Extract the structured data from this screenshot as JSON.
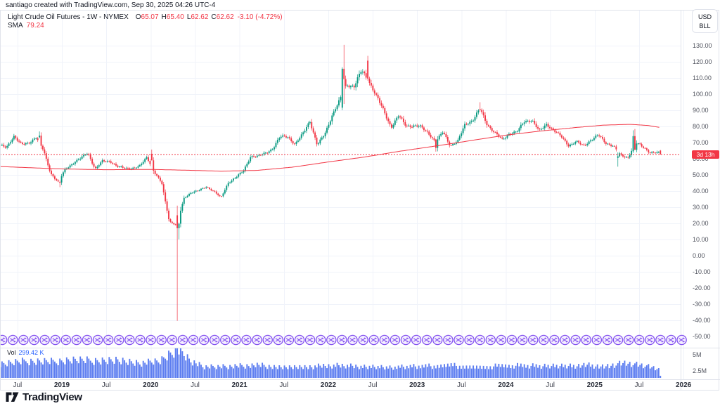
{
  "header": {
    "attribution": "santiago created with TradingView.com, Sep 30, 2025 04:26 UTC-4"
  },
  "legend": {
    "symbol": "Light Crude Oil Futures",
    "interval": "1W",
    "exchange": "NYMEX",
    "sep": " - ",
    "ohlc": [
      {
        "k": "O",
        "v": "65.07"
      },
      {
        "k": "H",
        "v": "65.40"
      },
      {
        "k": "L",
        "v": "62.62"
      },
      {
        "k": "C",
        "v": "62.62"
      }
    ],
    "change": "-3.10 (-4.72%)",
    "sma_label": "SMA",
    "sma_value": "79.24"
  },
  "right_axis": {
    "currency": "USD",
    "unit": "BLL",
    "countdown": "3d 13h",
    "price_labels": [
      "130.00",
      "120.00",
      "110.00",
      "100.00",
      "90.00",
      "80.00",
      "70.00",
      "60.00",
      "50.00",
      "40.00",
      "30.00",
      "20.00",
      "10.00",
      "0.00",
      "-10.00",
      "-20.00",
      "-30.00",
      "-40.00",
      "-50.00"
    ],
    "volume_labels": [
      "5M",
      "2.5M"
    ]
  },
  "time_axis": [
    {
      "label": "Jul",
      "t": 2018.5
    },
    {
      "label": "2019",
      "t": 2019.0
    },
    {
      "label": "Jul",
      "t": 2019.5
    },
    {
      "label": "2020",
      "t": 2020.0
    },
    {
      "label": "Jul",
      "t": 2020.5
    },
    {
      "label": "2021",
      "t": 2021.0
    },
    {
      "label": "Jul",
      "t": 2021.5
    },
    {
      "label": "2022",
      "t": 2022.0
    },
    {
      "label": "Jul",
      "t": 2022.5
    },
    {
      "label": "2023",
      "t": 2023.0
    },
    {
      "label": "Jul",
      "t": 2023.5
    },
    {
      "label": "2024",
      "t": 2024.0
    },
    {
      "label": "Jul",
      "t": 2024.5
    },
    {
      "label": "2025",
      "t": 2025.0
    },
    {
      "label": "Jul",
      "t": 2025.5
    },
    {
      "label": "2026",
      "t": 2026.0
    }
  ],
  "volume_legend": {
    "label": "Vol",
    "value": "299.42 K"
  },
  "logo": {
    "text": "TradingView"
  },
  "markers": {
    "name": "shuffle-arrows-circle",
    "count": 65
  },
  "colors": {
    "up": "#089981",
    "down": "#f23645",
    "sma": "#f23645",
    "price_line": "#f23645",
    "volume_bar": "#5b7cf0",
    "volume_value": "#2962ff",
    "marker_stroke": "#8250f0",
    "marker_fill": "#f4eefe",
    "grid": "#f0f3fa",
    "frame": "#e0e3eb",
    "badge_bg": "#f23645",
    "badge_text": "#ffffff"
  },
  "chart_data": {
    "type": "candlestick",
    "title": "Light Crude Oil Futures - 1W - NYMEX",
    "ylabel": "USD/BLL",
    "ylim": [
      -50,
      130
    ],
    "price_step": 10,
    "last_bar": {
      "o": 65.07,
      "h": 65.4,
      "l": 62.62,
      "c": 62.62,
      "change": -3.1,
      "change_pct": -4.72
    },
    "sma_last": 79.24,
    "current_price": 62.62,
    "grid": "on",
    "monthly_closes": [
      [
        2018.292,
        68.3
      ],
      [
        2018.375,
        67.0
      ],
      [
        2018.458,
        74.1
      ],
      [
        2018.542,
        68.7
      ],
      [
        2018.625,
        69.8
      ],
      [
        2018.708,
        73.3
      ],
      [
        2018.792,
        65.3
      ],
      [
        2018.875,
        50.9
      ],
      [
        2018.958,
        45.4
      ],
      [
        2019.042,
        53.8
      ],
      [
        2019.125,
        57.2
      ],
      [
        2019.208,
        60.1
      ],
      [
        2019.292,
        63.9
      ],
      [
        2019.375,
        53.5
      ],
      [
        2019.458,
        58.5
      ],
      [
        2019.542,
        58.6
      ],
      [
        2019.625,
        55.1
      ],
      [
        2019.708,
        54.1
      ],
      [
        2019.792,
        54.2
      ],
      [
        2019.875,
        55.2
      ],
      [
        2019.958,
        61.1
      ],
      [
        2020.042,
        51.6
      ],
      [
        2020.125,
        44.8
      ],
      [
        2020.208,
        21.5
      ],
      [
        2020.292,
        18.5
      ],
      [
        2020.375,
        35.5
      ],
      [
        2020.458,
        39.3
      ],
      [
        2020.542,
        40.3
      ],
      [
        2020.625,
        42.6
      ],
      [
        2020.708,
        40.1
      ],
      [
        2020.792,
        35.8
      ],
      [
        2020.875,
        45.3
      ],
      [
        2020.958,
        48.5
      ],
      [
        2021.042,
        52.2
      ],
      [
        2021.125,
        61.5
      ],
      [
        2021.208,
        61.4
      ],
      [
        2021.292,
        63.6
      ],
      [
        2021.375,
        66.3
      ],
      [
        2021.458,
        73.5
      ],
      [
        2021.542,
        73.9
      ],
      [
        2021.625,
        68.7
      ],
      [
        2021.708,
        75.0
      ],
      [
        2021.792,
        83.6
      ],
      [
        2021.875,
        68.2
      ],
      [
        2021.958,
        75.2
      ],
      [
        2022.042,
        86.8
      ],
      [
        2022.125,
        95.7
      ],
      [
        2022.208,
        106.0
      ],
      [
        2022.292,
        104.7
      ],
      [
        2022.375,
        114.7
      ],
      [
        2022.458,
        108.0
      ],
      [
        2022.542,
        98.6
      ],
      [
        2022.625,
        89.6
      ],
      [
        2022.708,
        79.5
      ],
      [
        2022.792,
        86.5
      ],
      [
        2022.875,
        80.6
      ],
      [
        2022.958,
        80.3
      ],
      [
        2023.042,
        79.7
      ],
      [
        2023.125,
        76.3
      ],
      [
        2023.208,
        70.0
      ],
      [
        2023.292,
        76.8
      ],
      [
        2023.375,
        68.1
      ],
      [
        2023.458,
        70.6
      ],
      [
        2023.542,
        81.8
      ],
      [
        2023.625,
        83.6
      ],
      [
        2023.708,
        90.8
      ],
      [
        2023.792,
        81.0
      ],
      [
        2023.875,
        76.0
      ],
      [
        2023.958,
        71.7
      ],
      [
        2024.042,
        75.8
      ],
      [
        2024.125,
        76.5
      ],
      [
        2024.208,
        83.2
      ],
      [
        2024.292,
        84.0
      ],
      [
        2024.375,
        77.0
      ],
      [
        2024.458,
        81.5
      ],
      [
        2024.542,
        77.2
      ],
      [
        2024.625,
        73.6
      ],
      [
        2024.708,
        68.2
      ],
      [
        2024.792,
        70.5
      ],
      [
        2024.875,
        68.0
      ],
      [
        2024.958,
        71.7
      ],
      [
        2025.042,
        74.5
      ],
      [
        2025.125,
        69.8
      ],
      [
        2025.208,
        68.0
      ],
      [
        2025.292,
        62.0
      ],
      [
        2025.375,
        60.8
      ],
      [
        2025.458,
        70.0
      ],
      [
        2025.542,
        67.3
      ],
      [
        2025.625,
        64.0
      ],
      [
        2025.708,
        63.5
      ],
      [
        2025.792,
        62.6
      ]
    ],
    "special_weeks": [
      {
        "t": 2018.755,
        "o": 73.3,
        "h": 76.9,
        "l": 72.6,
        "c": 74.3
      },
      {
        "t": 2018.978,
        "o": 45.6,
        "h": 46.5,
        "l": 42.4,
        "c": 45.3
      },
      {
        "t": 2020.02,
        "o": 63.1,
        "h": 65.7,
        "l": 58.9,
        "c": 59.0
      },
      {
        "t": 2020.299,
        "o": 25.0,
        "h": 31.0,
        "l": -40.3,
        "c": 17.0
      },
      {
        "t": 2020.318,
        "o": 17.0,
        "h": 20.5,
        "l": 10.1,
        "c": 19.8
      },
      {
        "t": 2022.163,
        "o": 91.6,
        "h": 116.6,
        "l": 90.1,
        "c": 115.7
      },
      {
        "t": 2022.182,
        "o": 115.7,
        "h": 130.5,
        "l": 93.9,
        "c": 109.3
      },
      {
        "t": 2022.45,
        "o": 120.7,
        "h": 123.7,
        "l": 108.3,
        "c": 109.6
      },
      {
        "t": 2023.21,
        "o": 71.9,
        "h": 72.3,
        "l": 64.4,
        "c": 66.7
      },
      {
        "t": 2023.716,
        "o": 90.8,
        "h": 95.0,
        "l": 89.2,
        "c": 90.3
      },
      {
        "t": 2025.266,
        "o": 60.5,
        "h": 63.9,
        "l": 55.1,
        "c": 61.5
      },
      {
        "t": 2025.44,
        "o": 64.6,
        "h": 77.6,
        "l": 63.6,
        "c": 74.0
      },
      {
        "t": 2025.46,
        "o": 74.0,
        "h": 78.4,
        "l": 65.5,
        "c": 65.5
      },
      {
        "t": 2025.74,
        "o": 65.07,
        "h": 65.4,
        "l": 62.62,
        "c": 62.62
      }
    ],
    "sma_points": [
      [
        2018.3,
        55.2
      ],
      [
        2018.7,
        54.3
      ],
      [
        2019.0,
        53.7
      ],
      [
        2019.5,
        53.2
      ],
      [
        2020.0,
        53.4
      ],
      [
        2020.4,
        52.9
      ],
      [
        2020.8,
        52.3
      ],
      [
        2021.2,
        52.8
      ],
      [
        2021.6,
        54.8
      ],
      [
        2022.0,
        58.0
      ],
      [
        2022.4,
        61.0
      ],
      [
        2022.8,
        64.6
      ],
      [
        2023.2,
        67.8
      ],
      [
        2023.6,
        71.2
      ],
      [
        2024.0,
        74.6
      ],
      [
        2024.4,
        77.2
      ],
      [
        2024.8,
        79.4
      ],
      [
        2025.1,
        80.8
      ],
      [
        2025.4,
        81.3
      ],
      [
        2025.6,
        80.6
      ],
      [
        2025.74,
        79.3
      ]
    ],
    "volume_profile": [
      [
        2018.3,
        0.5
      ],
      [
        2018.6,
        0.58
      ],
      [
        2018.9,
        0.56
      ],
      [
        2019.1,
        0.62
      ],
      [
        2019.3,
        0.6
      ],
      [
        2019.6,
        0.64
      ],
      [
        2019.9,
        0.52
      ],
      [
        2020.1,
        0.56
      ],
      [
        2020.22,
        0.85
      ],
      [
        2020.3,
        1.0
      ],
      [
        2020.45,
        0.6
      ],
      [
        2020.6,
        0.38
      ],
      [
        2020.9,
        0.4
      ],
      [
        2021.2,
        0.44
      ],
      [
        2021.5,
        0.38
      ],
      [
        2021.8,
        0.4
      ],
      [
        2022.1,
        0.42
      ],
      [
        2022.4,
        0.38
      ],
      [
        2022.7,
        0.36
      ],
      [
        2023.0,
        0.4
      ],
      [
        2023.4,
        0.42
      ],
      [
        2023.8,
        0.4
      ],
      [
        2024.2,
        0.42
      ],
      [
        2024.6,
        0.4
      ],
      [
        2024.9,
        0.44
      ],
      [
        2025.1,
        0.42
      ],
      [
        2025.35,
        0.5
      ],
      [
        2025.55,
        0.42
      ],
      [
        2025.72,
        0.34
      ]
    ]
  }
}
